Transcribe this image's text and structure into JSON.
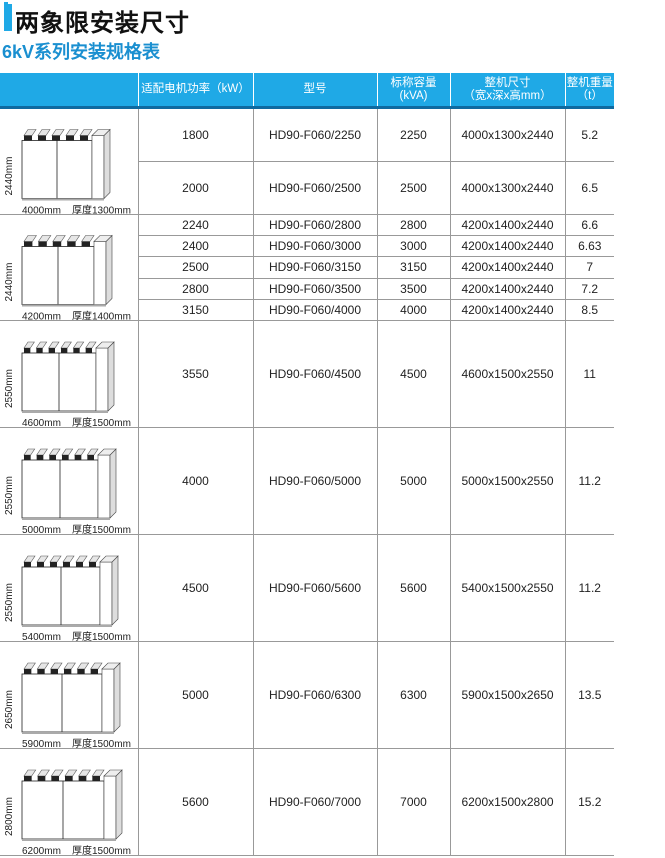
{
  "title": "两象限安装尺寸",
  "subtitle": "6kV系列安装规格表",
  "accent": "#1fa9e6",
  "headers": [
    "",
    "适配电机功率（kW）",
    "型号",
    "标称容量\n(kVA)",
    "整机尺寸\n（宽x深x高mm）",
    "整机重量\n（t）"
  ],
  "groups": [
    {
      "height_label": "2440mm",
      "width_label": "4000mm",
      "depth_label": "厚度1300mm",
      "rows": [
        {
          "power": "1800",
          "model": "HD90-F060/2250",
          "capacity": "2250",
          "size": "4000x1300x2440",
          "weight": "5.2"
        },
        {
          "power": "2000",
          "model": "HD90-F060/2500",
          "capacity": "2500",
          "size": "4000x1300x2440",
          "weight": "6.5"
        }
      ]
    },
    {
      "height_label": "2440mm",
      "width_label": "4200mm",
      "depth_label": "厚度1400mm",
      "rows": [
        {
          "power": "2240",
          "model": "HD90-F060/2800",
          "capacity": "2800",
          "size": "4200x1400x2440",
          "weight": "6.6"
        },
        {
          "power": "2400",
          "model": "HD90-F060/3000",
          "capacity": "3000",
          "size": "4200x1400x2440",
          "weight": "6.63"
        },
        {
          "power": "2500",
          "model": "HD90-F060/3150",
          "capacity": "3150",
          "size": "4200x1400x2440",
          "weight": "7"
        },
        {
          "power": "2800",
          "model": "HD90-F060/3500",
          "capacity": "3500",
          "size": "4200x1400x2440",
          "weight": "7.2"
        },
        {
          "power": "3150",
          "model": "HD90-F060/4000",
          "capacity": "4000",
          "size": "4200x1400x2440",
          "weight": "8.5"
        }
      ]
    },
    {
      "height_label": "2550mm",
      "width_label": "4600mm",
      "depth_label": "厚度1500mm",
      "rows": [
        {
          "power": "3550",
          "model": "HD90-F060/4500",
          "capacity": "4500",
          "size": "4600x1500x2550",
          "weight": "11"
        }
      ]
    },
    {
      "height_label": "2550mm",
      "width_label": "5000mm",
      "depth_label": "厚度1500mm",
      "rows": [
        {
          "power": "4000",
          "model": "HD90-F060/5000",
          "capacity": "5000",
          "size": "5000x1500x2550",
          "weight": "11.2"
        }
      ]
    },
    {
      "height_label": "2550mm",
      "width_label": "5400mm",
      "depth_label": "厚度1500mm",
      "rows": [
        {
          "power": "4500",
          "model": "HD90-F060/5600",
          "capacity": "5600",
          "size": "5400x1500x2550",
          "weight": "11.2"
        }
      ]
    },
    {
      "height_label": "2650mm",
      "width_label": "5900mm",
      "depth_label": "厚度1500mm",
      "rows": [
        {
          "power": "5000",
          "model": "HD90-F060/6300",
          "capacity": "6300",
          "size": "5900x1500x2650",
          "weight": "13.5"
        }
      ]
    },
    {
      "height_label": "2800mm",
      "width_label": "6200mm",
      "depth_label": "厚度1500mm",
      "rows": [
        {
          "power": "5600",
          "model": "HD90-F060/7000",
          "capacity": "7000",
          "size": "6200x1500x2800",
          "weight": "15.2"
        }
      ]
    }
  ]
}
